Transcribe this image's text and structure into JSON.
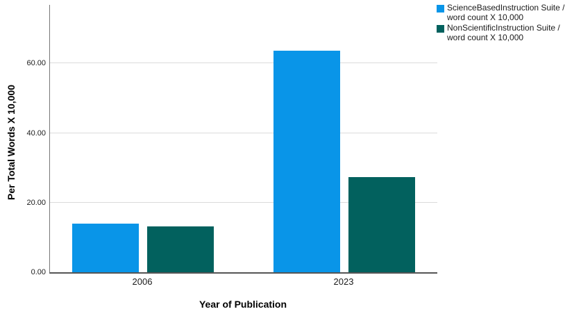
{
  "chart_data": {
    "type": "bar",
    "title": "",
    "categories": [
      "2006",
      "2023"
    ],
    "series": [
      {
        "name": "ScienceBasedInstruction Suite / word count X 10,000",
        "color": "#0995E8",
        "values": [
          14.0,
          63.7
        ]
      },
      {
        "name": "NonScientificInstruction Suite / word count X 10,000",
        "color": "#02615E",
        "values": [
          13.2,
          27.4
        ]
      }
    ],
    "xlabel": "Year of Publication",
    "ylabel": "Per Total Words X 10,000",
    "yticks": [
      {
        "label": "0.00",
        "value": 0
      },
      {
        "label": "20.00",
        "value": 20
      },
      {
        "label": "40.00",
        "value": 40
      },
      {
        "label": "60.00",
        "value": 60
      }
    ],
    "ylim": [
      0,
      76.85
    ],
    "grid": true,
    "legend_position": "top-right-outside",
    "background": "#ffffff",
    "gridline_color": "#dbdbdb",
    "axis_line_color": "#666666"
  },
  "axes": {
    "x_title": "Year of Publication",
    "y_title": "Per Total Words X 10,000"
  },
  "legend": {
    "items": [
      {
        "line1": "ScienceBasedInstruction Suite /",
        "line2": "word count X 10,000",
        "color": "#0995E8"
      },
      {
        "line1": "NonScientificInstruction Suite /",
        "line2": "word count X 10,000",
        "color": "#02615E"
      }
    ]
  }
}
